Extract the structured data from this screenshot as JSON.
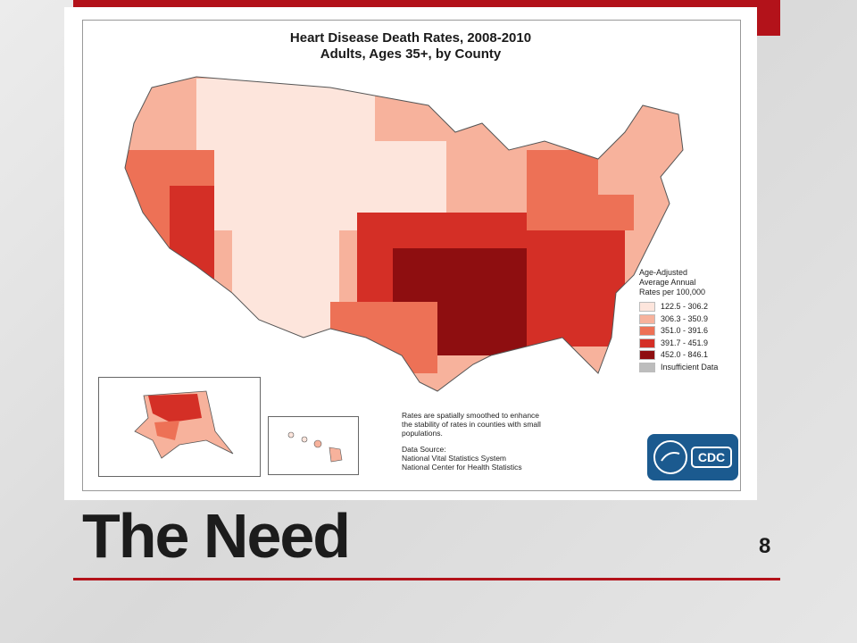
{
  "slide": {
    "title": "The Need",
    "page_number": "8"
  },
  "map": {
    "title_line1": "Heart Disease Death Rates, 2008-2010",
    "title_line2": "Adults, Ages 35+, by County",
    "legend_title_lines": [
      "Age-Adjusted",
      "Average Annual",
      "Rates per 100,000"
    ],
    "legend_items": [
      {
        "label": "122.5 - 306.2",
        "color": "#fde5dc"
      },
      {
        "label": "306.3 - 350.9",
        "color": "#f7b29c"
      },
      {
        "label": "351.0 - 391.6",
        "color": "#ed7156"
      },
      {
        "label": "391.7 - 451.9",
        "color": "#d42f26"
      },
      {
        "label": "452.0 - 846.1",
        "color": "#8e0e10"
      },
      {
        "label": "Insufficient Data",
        "color": "#bdbdbd"
      }
    ],
    "note_lines": [
      "Rates are spatially smoothed to enhance",
      "the stability of rates in counties with small",
      "populations."
    ],
    "source_lines": [
      "Data Source:",
      "National Vital Statistics System",
      "National Center for Health Statistics"
    ],
    "logo_text": "CDC"
  },
  "colors": {
    "accent": "#b3121a",
    "logo_blue": "#1b5a8f"
  }
}
